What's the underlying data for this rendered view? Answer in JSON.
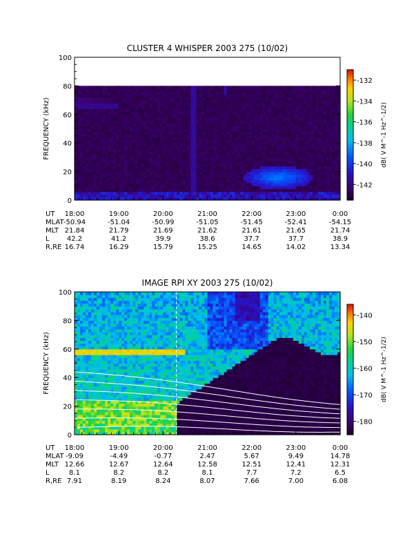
{
  "chart_data": [
    {
      "type": "heatmap",
      "title": "CLUSTER 4 WHISPER 2003 275 (10/02)",
      "ylabel": "FREQUENCY (kHz)",
      "ylim": [
        0,
        100
      ],
      "y_ticks": [
        "0",
        "20",
        "40",
        "60",
        "80",
        "100"
      ],
      "x_ticks": [
        "18:00",
        "19:00",
        "20:00",
        "21:00",
        "22:00",
        "23:00",
        "0:00"
      ],
      "colorbar": {
        "label": "dB( V M^-1 Hz^-1/2)",
        "range": [
          -143.5,
          -131
        ],
        "ticks": [
          "-132",
          "-134",
          "-136",
          "-138",
          "-140",
          "-142"
        ]
      },
      "orbit_table": {
        "rows": [
          {
            "label": "UT",
            "values": [
              "18:00",
              "19:00",
              "20:00",
              "21:00",
              "22:00",
              "23:00",
              "0:00"
            ]
          },
          {
            "label": "MLAT",
            "values": [
              "-50.94",
              "-51.04",
              "-50.99",
              "-51.05",
              "-51.45",
              "-52.41",
              "-54.15"
            ]
          },
          {
            "label": "MLT",
            "values": [
              "21.84",
              "21.79",
              "21.69",
              "21.62",
              "21.61",
              "21.65",
              "21.74"
            ]
          },
          {
            "label": "L",
            "values": [
              "42.2",
              "41.2",
              "39.9",
              "38.6",
              "37.7",
              "37.7",
              "38.9"
            ]
          },
          {
            "label": "R,RE",
            "values": [
              "16.74",
              "16.29",
              "15.79",
              "15.25",
              "14.65",
              "14.02",
              "13.34"
            ]
          }
        ]
      }
    },
    {
      "type": "heatmap",
      "title": "IMAGE RPI XY 2003 275 (10/02)",
      "ylabel": "FREQUENCY (kHz)",
      "ylim": [
        0,
        100
      ],
      "y_ticks": [
        "0",
        "20",
        "40",
        "60",
        "80",
        "100"
      ],
      "x_ticks": [
        "18:00",
        "19:00",
        "20:00",
        "21:00",
        "22:00",
        "23:00",
        "0:00"
      ],
      "colorbar": {
        "label": "dB( V M^-1 Hz^-1/2)",
        "range": [
          -185,
          -136
        ],
        "ticks": [
          "-140",
          "-150",
          "-160",
          "-170",
          "-180"
        ]
      },
      "orbit_table": {
        "rows": [
          {
            "label": "UT",
            "values": [
              "18:00",
              "19:00",
              "20:00",
              "21:00",
              "22:00",
              "23:00",
              "0:00"
            ]
          },
          {
            "label": "MLAT",
            "values": [
              "-9.09",
              "-4.49",
              "-0.77",
              "2.47",
              "5.67",
              "9.49",
              "14.78"
            ]
          },
          {
            "label": "MLT",
            "values": [
              "12.66",
              "12.67",
              "12.64",
              "12.58",
              "12.51",
              "12.41",
              "12.31"
            ]
          },
          {
            "label": "L",
            "values": [
              "8.1",
              "8.2",
              "8.2",
              "8.1",
              "7.7",
              "7.2",
              "6.5"
            ]
          },
          {
            "label": "R,RE",
            "values": [
              "7.91",
              "8.19",
              "8.24",
              "8.07",
              "7.66",
              "7.00",
              "6.08"
            ]
          }
        ]
      }
    }
  ]
}
